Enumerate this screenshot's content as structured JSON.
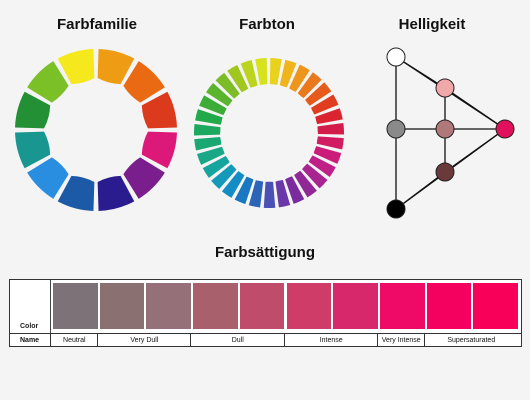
{
  "titles": {
    "family": "Farbfamilie",
    "hue": "Farbton",
    "brightness": "Helligkeit",
    "saturation": "Farbsättigung"
  },
  "family_colors": [
    "#f5e81c",
    "#ee9c14",
    "#ea6a14",
    "#db3a1c",
    "#dc1878",
    "#7a1e8e",
    "#2a1c8e",
    "#1c5aa8",
    "#2a8ee0",
    "#1a9690",
    "#239036",
    "#7cc028"
  ],
  "hue_colors": [
    "#d6e21c",
    "#e8d21c",
    "#f0b41c",
    "#ee961c",
    "#ea781c",
    "#e65a1c",
    "#e03c20",
    "#da2430",
    "#d41c4a",
    "#d21c62",
    "#cc1c7a",
    "#be2088",
    "#a8248e",
    "#902896",
    "#7a2c9e",
    "#6a38a8",
    "#4a50b4",
    "#2c64b8",
    "#1a78c0",
    "#148cc4",
    "#149ab8",
    "#16a49e",
    "#18a888",
    "#1aa872",
    "#1ca85e",
    "#22aa4a",
    "#3cac36",
    "#5ab42e",
    "#7cbc26",
    "#a0c620",
    "#bcd41e"
  ],
  "brightness_nodes": [
    {
      "name": "white-node",
      "color": "#ffffff"
    },
    {
      "name": "light-pink-node",
      "color": "#f0a8a8"
    },
    {
      "name": "gray-node",
      "color": "#8a8a8a"
    },
    {
      "name": "dusty-rose-node",
      "color": "#b07878"
    },
    {
      "name": "magenta-node",
      "color": "#e0105c"
    },
    {
      "name": "dark-brown-node",
      "color": "#6a3a3a"
    },
    {
      "name": "black-node",
      "color": "#000000"
    }
  ],
  "saturation": {
    "color_label": "Color",
    "name_label": "Name",
    "swatches": [
      "#7c7278",
      "#8a7070",
      "#967078",
      "#a8606c",
      "#be4c6a",
      "#d03c68",
      "#d8286c",
      "#f00a68",
      "#f4005e",
      "#f8005a"
    ],
    "groups": [
      {
        "label": "Neutral"
      },
      {
        "label": "Very Dull"
      },
      {
        "label": "Dull"
      },
      {
        "label": "Intense"
      },
      {
        "label": "Very Intense"
      },
      {
        "label": "Supersaturated"
      }
    ]
  }
}
